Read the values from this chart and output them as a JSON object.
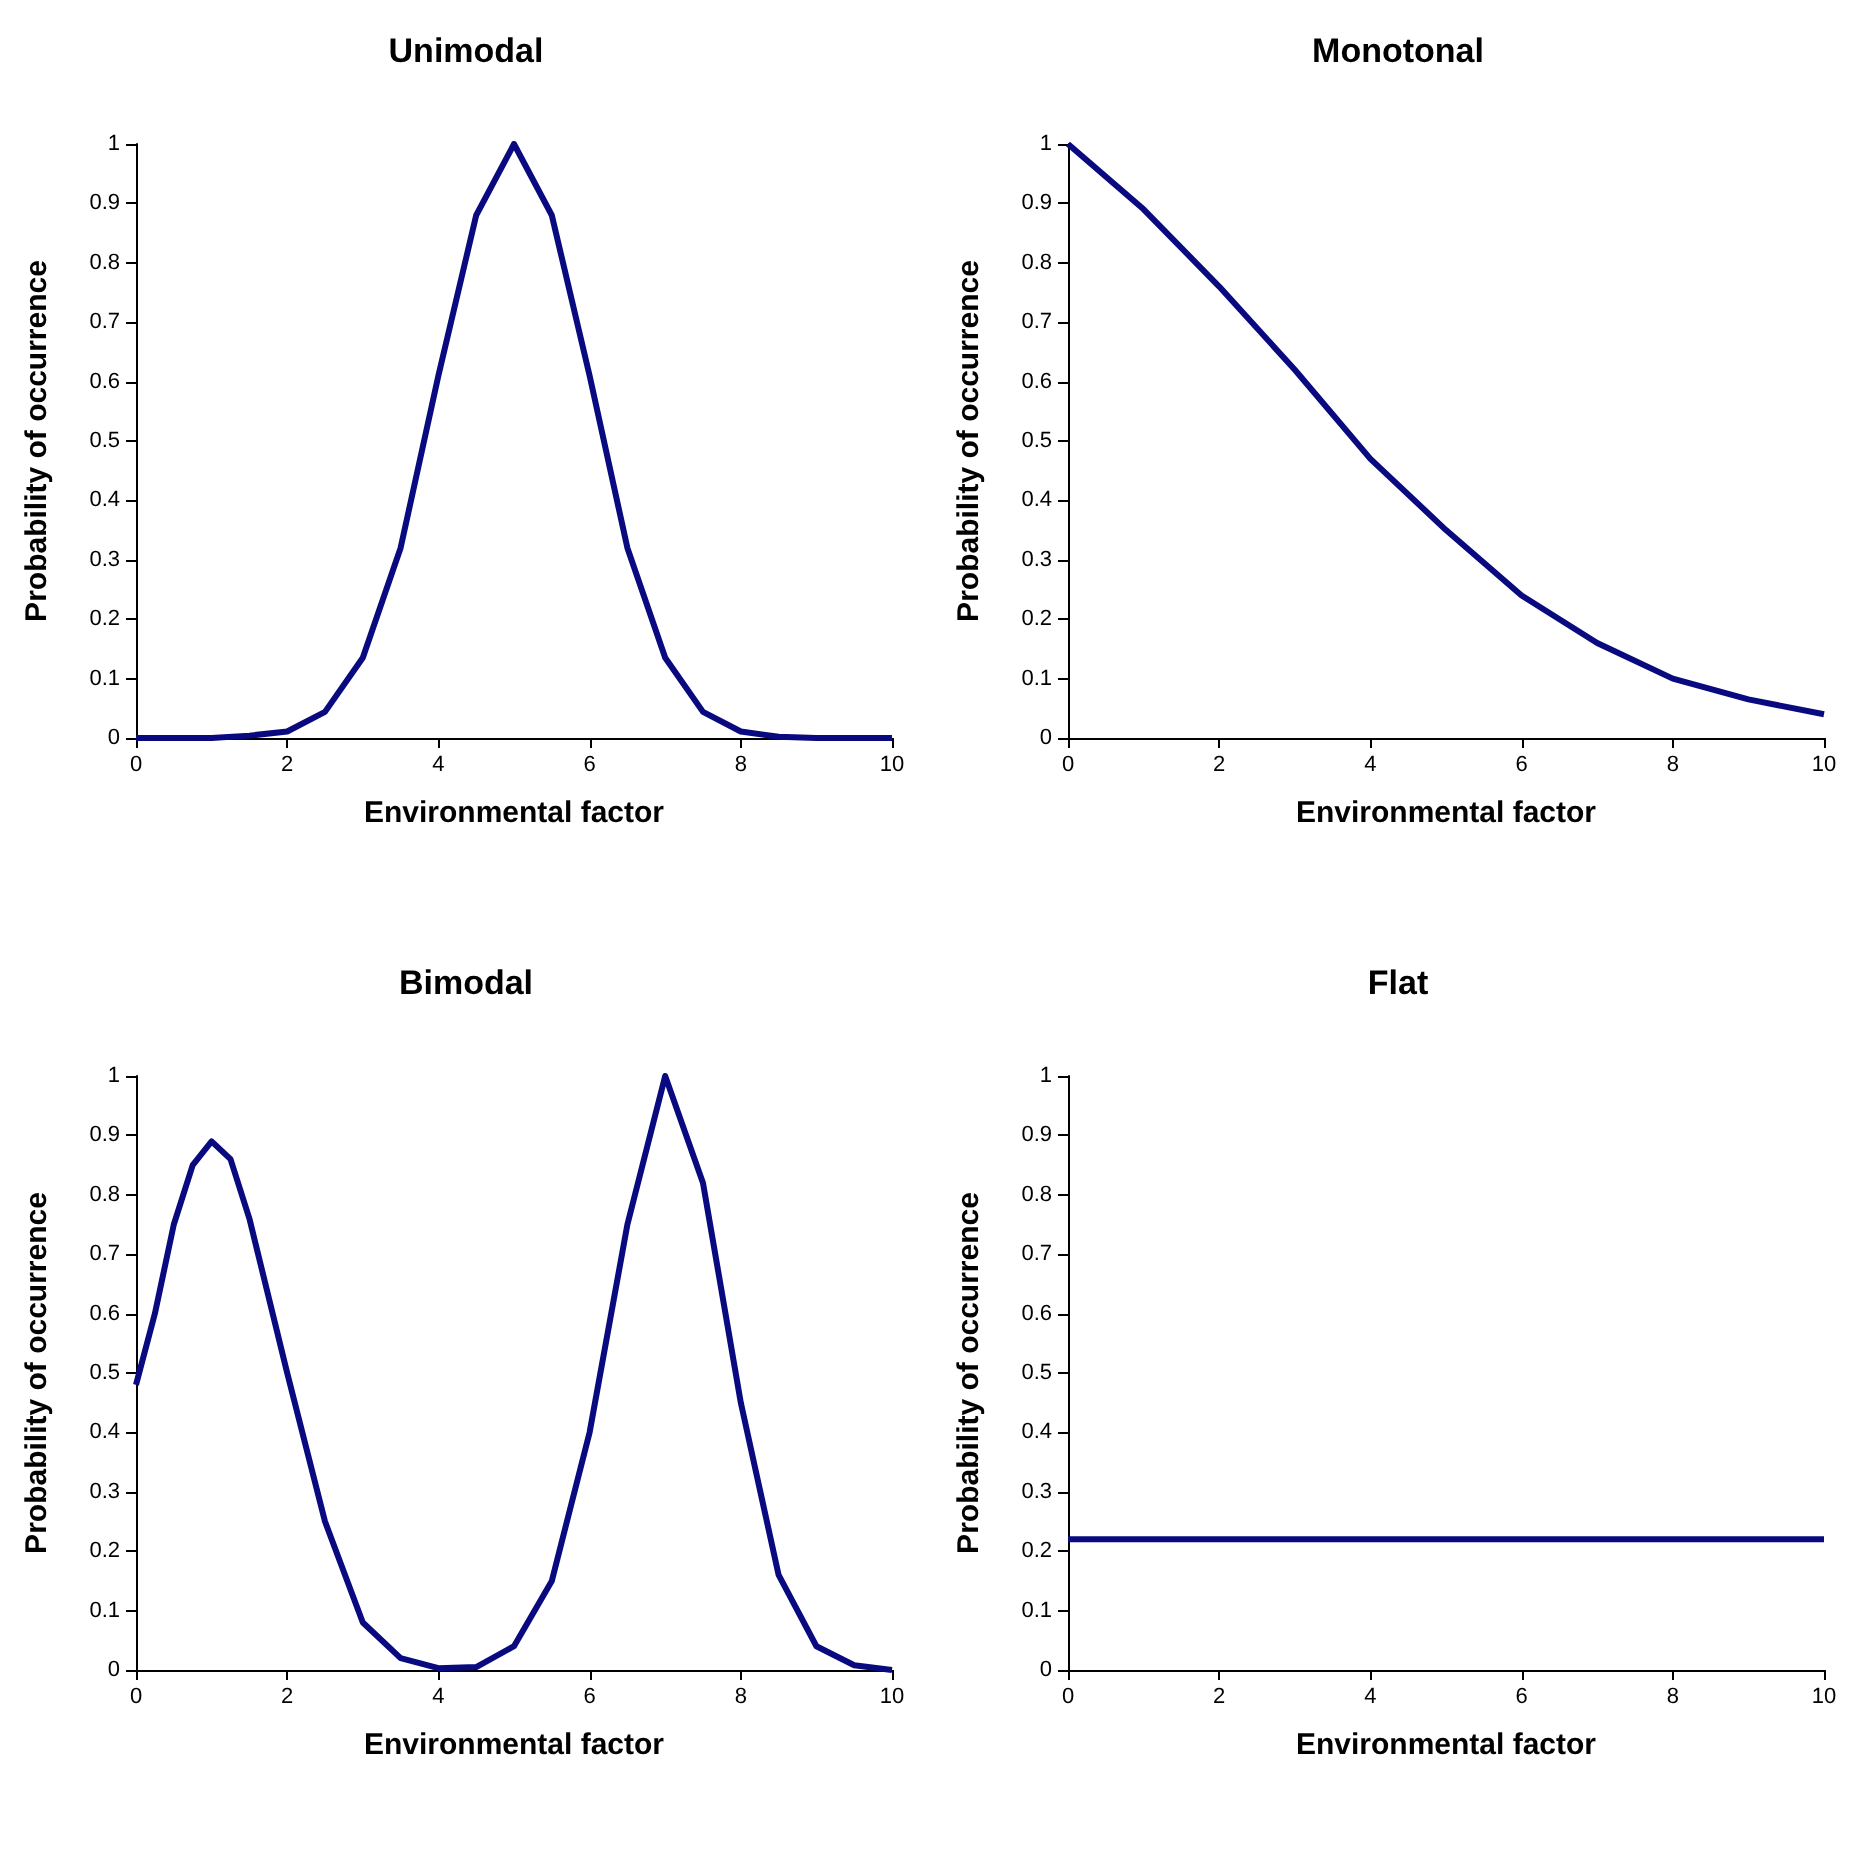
{
  "chart_data": [
    {
      "type": "line",
      "title": "Unimodal",
      "xlabel": "Environmental factor",
      "ylabel": "Probability of occurrence",
      "color": "#0a0a80",
      "marker": "none",
      "line_style": "solid",
      "x": [
        0,
        0.5,
        1,
        1.5,
        2,
        2.5,
        3,
        3.5,
        4,
        4.5,
        5,
        5.5,
        6,
        6.5,
        7,
        7.5,
        8,
        8.5,
        9,
        9.5,
        10
      ],
      "values": [
        0,
        0,
        0,
        0.004,
        0.011,
        0.044,
        0.135,
        0.32,
        0.61,
        0.88,
        1,
        0.88,
        0.61,
        0.32,
        0.135,
        0.044,
        0.011,
        0.002,
        0,
        0,
        0
      ],
      "xlim": [
        0,
        10
      ],
      "ylim": [
        0,
        1
      ],
      "xticks": [
        0,
        2,
        4,
        6,
        8,
        10
      ],
      "yticks": [
        0,
        0.1,
        0.2,
        0.3,
        0.4,
        0.5,
        0.6,
        0.7,
        0.8,
        0.9,
        1
      ]
    },
    {
      "type": "line",
      "title": "Monotonal",
      "xlabel": "Environmental factor",
      "ylabel": "Probability of occurrence",
      "color": "#0a0a80",
      "marker": "none",
      "line_style": "solid",
      "x": [
        0,
        1,
        2,
        3,
        4,
        5,
        6,
        7,
        8,
        9,
        10
      ],
      "values": [
        1,
        0.89,
        0.76,
        0.62,
        0.47,
        0.35,
        0.24,
        0.16,
        0.1,
        0.065,
        0.04
      ],
      "xlim": [
        0,
        10
      ],
      "ylim": [
        0,
        1
      ],
      "xticks": [
        0,
        2,
        4,
        6,
        8,
        10
      ],
      "yticks": [
        0,
        0.1,
        0.2,
        0.3,
        0.4,
        0.5,
        0.6,
        0.7,
        0.8,
        0.9,
        1
      ]
    },
    {
      "type": "line",
      "title": "Bimodal",
      "xlabel": "Environmental factor",
      "ylabel": "Probability of occurrence",
      "color": "#0a0a80",
      "marker": "none",
      "line_style": "solid",
      "x": [
        0,
        0.25,
        0.5,
        0.75,
        1,
        1.25,
        1.5,
        2,
        2.5,
        3,
        3.5,
        4,
        4.5,
        5,
        5.5,
        6,
        6.5,
        7,
        7.5,
        8,
        8.5,
        9,
        9.5,
        10
      ],
      "values": [
        0.48,
        0.6,
        0.75,
        0.85,
        0.89,
        0.86,
        0.76,
        0.5,
        0.25,
        0.08,
        0.02,
        0.003,
        0.005,
        0.04,
        0.15,
        0.4,
        0.75,
        1,
        0.82,
        0.45,
        0.16,
        0.04,
        0.008,
        0
      ],
      "xlim": [
        0,
        10
      ],
      "ylim": [
        0,
        1
      ],
      "xticks": [
        0,
        2,
        4,
        6,
        8,
        10
      ],
      "yticks": [
        0,
        0.1,
        0.2,
        0.3,
        0.4,
        0.5,
        0.6,
        0.7,
        0.8,
        0.9,
        1
      ]
    },
    {
      "type": "line",
      "title": "Flat",
      "xlabel": "Environmental factor",
      "ylabel": "Probability of occurrence",
      "color": "#0a0a80",
      "marker": "none",
      "line_style": "solid",
      "x": [
        0,
        10
      ],
      "values": [
        0.22,
        0.22
      ],
      "xlim": [
        0,
        10
      ],
      "ylim": [
        0,
        1
      ],
      "xticks": [
        0,
        2,
        4,
        6,
        8,
        10
      ],
      "yticks": [
        0,
        0.1,
        0.2,
        0.3,
        0.4,
        0.5,
        0.6,
        0.7,
        0.8,
        0.9,
        1
      ]
    }
  ]
}
